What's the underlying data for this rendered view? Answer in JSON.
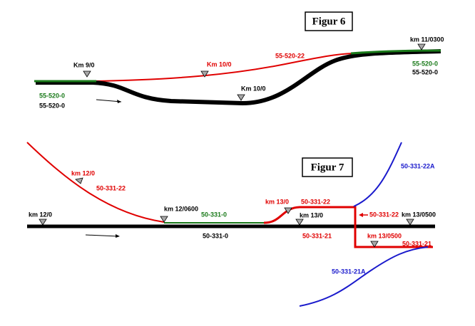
{
  "figure6": {
    "title": "Figur 6",
    "labels": [
      "km 11/0300",
      "Km 9/0",
      "Km 10/0",
      "55-520-22",
      "55-520-0",
      "55-520-0",
      "Km 10/0",
      "55-520-0",
      "55-520-0"
    ]
  },
  "figure7": {
    "title": "Figur 7",
    "labels": [
      "km 12/0",
      "50-331-22",
      "km 12/0",
      "km 12/0600",
      "50-331-0",
      "km 13/0",
      "50-331-22",
      "km 13/0",
      "50-331-22",
      "km 13/0500",
      "50-331-0",
      "50-331-21",
      "km 13/0500",
      "50-331-21",
      "50-331-22A",
      "50-331-21A"
    ]
  }
}
